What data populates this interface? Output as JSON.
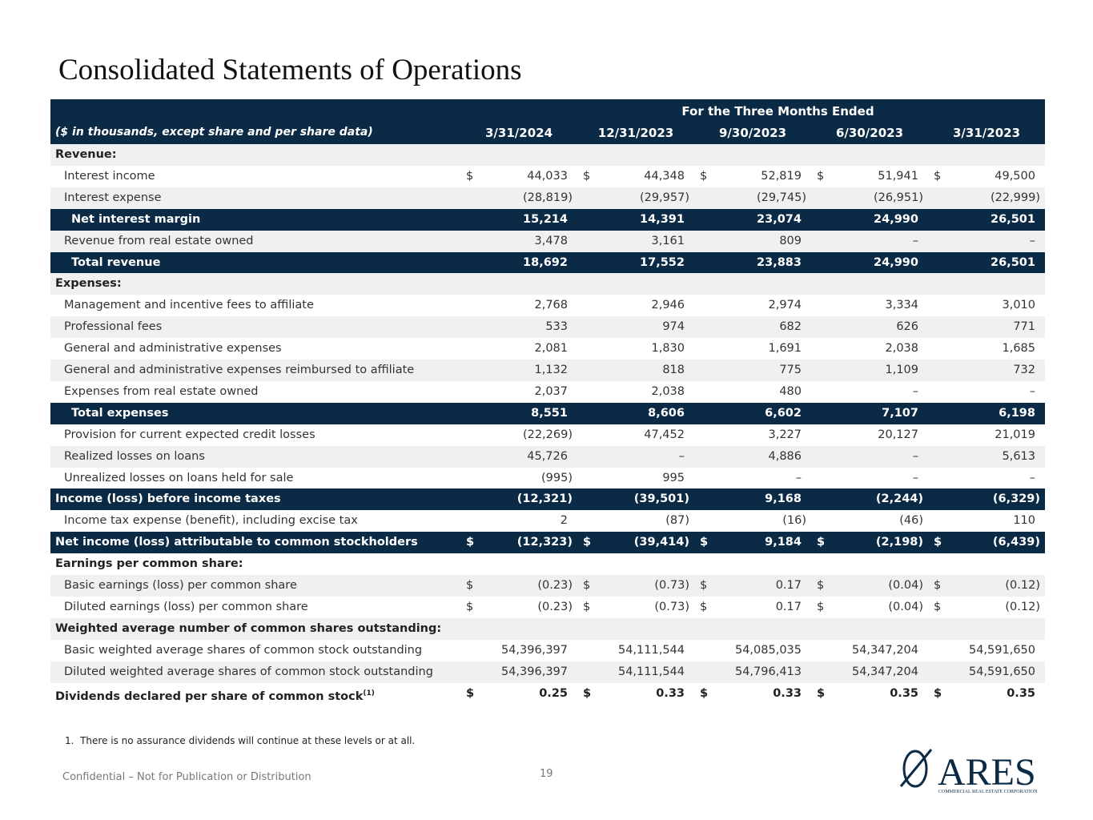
{
  "title": "Consolidated Statements of Operations",
  "table": {
    "period_header": "For the Three Months Ended",
    "units_note": "($ in thousands, except share and per share data)",
    "columns": [
      "3/31/2024",
      "12/31/2023",
      "9/30/2023",
      "6/30/2023",
      "3/31/2023"
    ],
    "rows": [
      {
        "label": "Revenue:",
        "level": 0,
        "bold": true
      },
      {
        "label": "Interest income",
        "level": 1,
        "currency": "$",
        "values": [
          "44,033",
          "44,348",
          "52,819",
          "51,941",
          "49,500"
        ]
      },
      {
        "label": "Interest expense",
        "level": 1,
        "values": [
          "(28,819)",
          "(29,957)",
          "(29,745)",
          "(26,951)",
          "(22,999)"
        ]
      },
      {
        "label": "Net interest margin",
        "level": 2,
        "highlight": true,
        "values": [
          "15,214",
          "14,391",
          "23,074",
          "24,990",
          "26,501"
        ]
      },
      {
        "label": "Revenue from real estate owned",
        "level": 1,
        "values": [
          "3,478",
          "3,161",
          "809",
          "–",
          "–"
        ]
      },
      {
        "label": "Total revenue",
        "level": 2,
        "highlight": true,
        "values": [
          "18,692",
          "17,552",
          "23,883",
          "24,990",
          "26,501"
        ]
      },
      {
        "label": "Expenses:",
        "level": 0,
        "bold": true
      },
      {
        "label": "Management and incentive fees to affiliate",
        "level": 1,
        "values": [
          "2,768",
          "2,946",
          "2,974",
          "3,334",
          "3,010"
        ]
      },
      {
        "label": "Professional fees",
        "level": 1,
        "values": [
          "533",
          "974",
          "682",
          "626",
          "771"
        ]
      },
      {
        "label": "General and administrative expenses",
        "level": 1,
        "values": [
          "2,081",
          "1,830",
          "1,691",
          "2,038",
          "1,685"
        ]
      },
      {
        "label": "General and administrative expenses reimbursed to affiliate",
        "level": 1,
        "values": [
          "1,132",
          "818",
          "775",
          "1,109",
          "732"
        ]
      },
      {
        "label": "Expenses from real estate owned",
        "level": 1,
        "values": [
          "2,037",
          "2,038",
          "480",
          "–",
          "–"
        ]
      },
      {
        "label": "Total expenses",
        "level": 2,
        "highlight": true,
        "values": [
          "8,551",
          "8,606",
          "6,602",
          "7,107",
          "6,198"
        ]
      },
      {
        "label": "Provision for current expected credit losses",
        "level": 1,
        "values": [
          "(22,269)",
          "47,452",
          "3,227",
          "20,127",
          "21,019"
        ]
      },
      {
        "label": "Realized losses on loans",
        "level": 1,
        "values": [
          "45,726",
          "–",
          "4,886",
          "–",
          "5,613"
        ]
      },
      {
        "label": "Unrealized losses on loans held for sale",
        "level": 1,
        "values": [
          "(995)",
          "995",
          "–",
          "–",
          "–"
        ]
      },
      {
        "label": "Income (loss) before income taxes",
        "level": 0,
        "highlight": true,
        "values": [
          "(12,321)",
          "(39,501)",
          "9,168",
          "(2,244)",
          "(6,329)"
        ]
      },
      {
        "label": "Income tax expense (benefit), including excise tax",
        "level": 1,
        "values": [
          "2",
          "(87)",
          "(16)",
          "(46)",
          "110"
        ]
      },
      {
        "label": "Net income (loss) attributable to common stockholders",
        "level": 0,
        "highlight": true,
        "currency": "$",
        "values": [
          "(12,323)",
          "(39,414)",
          "9,184",
          "(2,198)",
          "(6,439)"
        ]
      },
      {
        "label": "Earnings per common share:",
        "level": 0,
        "bold": true
      },
      {
        "label": "Basic earnings (loss) per common share",
        "level": 1,
        "currency": "$",
        "values": [
          "(0.23)",
          "(0.73)",
          "0.17",
          "(0.04)",
          "(0.12)"
        ]
      },
      {
        "label": "Diluted earnings (loss) per common share",
        "level": 1,
        "currency": "$",
        "values": [
          "(0.23)",
          "(0.73)",
          "0.17",
          "(0.04)",
          "(0.12)"
        ]
      },
      {
        "label": "Weighted average number of common shares outstanding:",
        "level": 0,
        "bold": true
      },
      {
        "label": "Basic weighted average shares of common stock outstanding",
        "level": 1,
        "values": [
          "54,396,397",
          "54,111,544",
          "54,085,035",
          "54,347,204",
          "54,591,650"
        ]
      },
      {
        "label": "Diluted weighted average shares of common stock outstanding",
        "level": 1,
        "values": [
          "54,396,397",
          "54,111,544",
          "54,796,413",
          "54,347,204",
          "54,591,650"
        ]
      },
      {
        "label": "Dividends declared per share of common stock",
        "note": "(1)",
        "level": 0,
        "bold": true,
        "currency": "$",
        "values": [
          "0.25",
          "0.33",
          "0.33",
          "0.35",
          "0.35"
        ]
      }
    ]
  },
  "footnote": {
    "marker": "1.",
    "text": "There is no assurance dividends will continue at these levels or at all."
  },
  "footer": {
    "confidential": "Confidential – Not for Publication or Distribution",
    "page": "19"
  },
  "logo": {
    "name": "ARES",
    "tagline": "COMMERCIAL REAL ESTATE CORPORATION"
  }
}
